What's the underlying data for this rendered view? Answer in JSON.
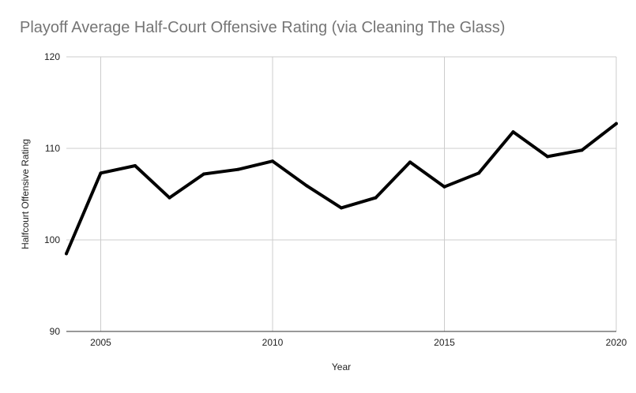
{
  "chart_data": {
    "type": "line",
    "title": "Playoff Average Half-Court Offensive Rating (via Cleaning The Glass)",
    "xlabel": "Year",
    "ylabel": "Halfcourt Offensive Rating",
    "xlim": [
      2004,
      2020
    ],
    "ylim": [
      90,
      120
    ],
    "x_ticks": [
      2005,
      2010,
      2015,
      2020
    ],
    "y_ticks": [
      90,
      100,
      110,
      120
    ],
    "grid": true,
    "legend": "none",
    "series": [
      {
        "color": "#000000",
        "x": [
          2004,
          2005,
          2006,
          2007,
          2008,
          2009,
          2010,
          2011,
          2012,
          2013,
          2014,
          2015,
          2016,
          2017,
          2018,
          2019,
          2020
        ],
        "values": [
          98.5,
          107.3,
          108.1,
          104.6,
          107.2,
          107.7,
          108.6,
          105.9,
          103.5,
          104.6,
          108.5,
          105.8,
          107.3,
          111.8,
          109.1,
          109.8,
          112.7
        ]
      }
    ]
  },
  "colors": {
    "title": "#757575",
    "grid": "#cccccc",
    "axis_line": "#333333",
    "text": "#222222"
  }
}
